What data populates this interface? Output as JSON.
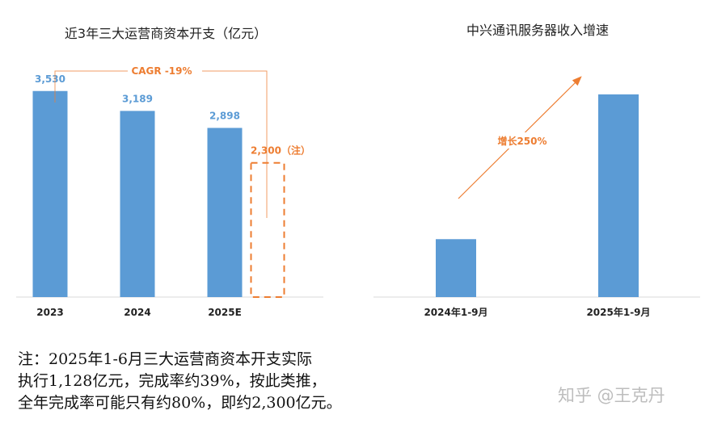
{
  "chart_data": [
    {
      "type": "bar",
      "title": "近3年三大运营商资本开支（亿元）",
      "categories": [
        "2023",
        "2024",
        "2025E",
        ""
      ],
      "values": [
        3530,
        3189,
        2898,
        2300
      ],
      "value_labels": [
        "3,530",
        "3,189",
        "2,898",
        "2,300（注）"
      ],
      "projected_bar_index": 3,
      "annotation": "CAGR -19%",
      "ylim": [
        0,
        3900
      ],
      "grid": false,
      "bar_color": "#5b9bd5",
      "projected_color": "#ed7d31"
    },
    {
      "type": "bar",
      "title": "中兴通讯服务器收入增速",
      "categories": [
        "2024年1-9月",
        "2025年1-9月"
      ],
      "values": [
        1,
        3.5
      ],
      "annotation": "增长250%",
      "ylim": [
        0,
        4.6
      ],
      "grid": false,
      "bar_color": "#5b9bd5",
      "annotation_color": "#ed7d31"
    }
  ],
  "note": {
    "lines": [
      "注：2025年1-6月三大运营商资本开支实际",
      "执行1,128亿元，完成率约39%，按此类推，",
      "全年完成率可能只有约80%，即约2,300亿元。"
    ]
  },
  "watermark": "知乎 @王克丹"
}
